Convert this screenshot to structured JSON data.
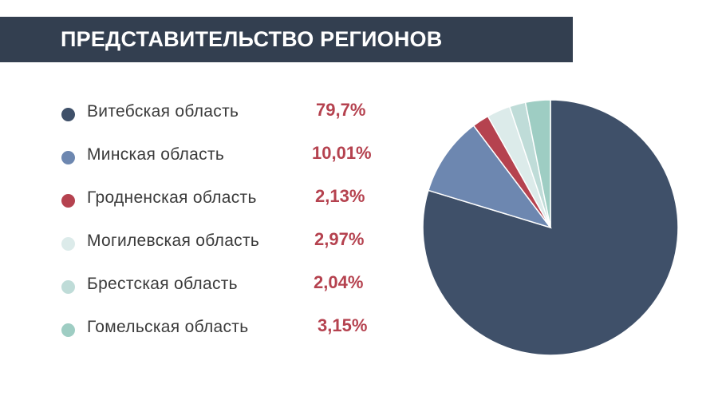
{
  "header": {
    "title": "ПРЕДСТАВИТЕЛЬСТВО РЕГИОНОВ"
  },
  "chart_data": {
    "type": "pie",
    "title": "ПРЕДСТАВИТЕЛЬСТВО РЕГИОНОВ",
    "legend_position": "left",
    "slices": [
      {
        "label": "Витебская область",
        "value": 79.7,
        "display": "79,7%",
        "color": "#3f5069"
      },
      {
        "label": "Минская область",
        "value": 10.01,
        "display": "10,01%",
        "color": "#6d87b0"
      },
      {
        "label": "Гродненская область",
        "value": 2.13,
        "display": "2,13%",
        "color": "#b5424f"
      },
      {
        "label": "Могилевская область",
        "value": 2.97,
        "display": "2,97%",
        "color": "#dcebea"
      },
      {
        "label": "Брестская область",
        "value": 2.04,
        "display": "2,04%",
        "color": "#bfdcd8"
      },
      {
        "label": "Гомельская область",
        "value": 3.15,
        "display": "3,15%",
        "color": "#9ecdc3"
      }
    ]
  }
}
